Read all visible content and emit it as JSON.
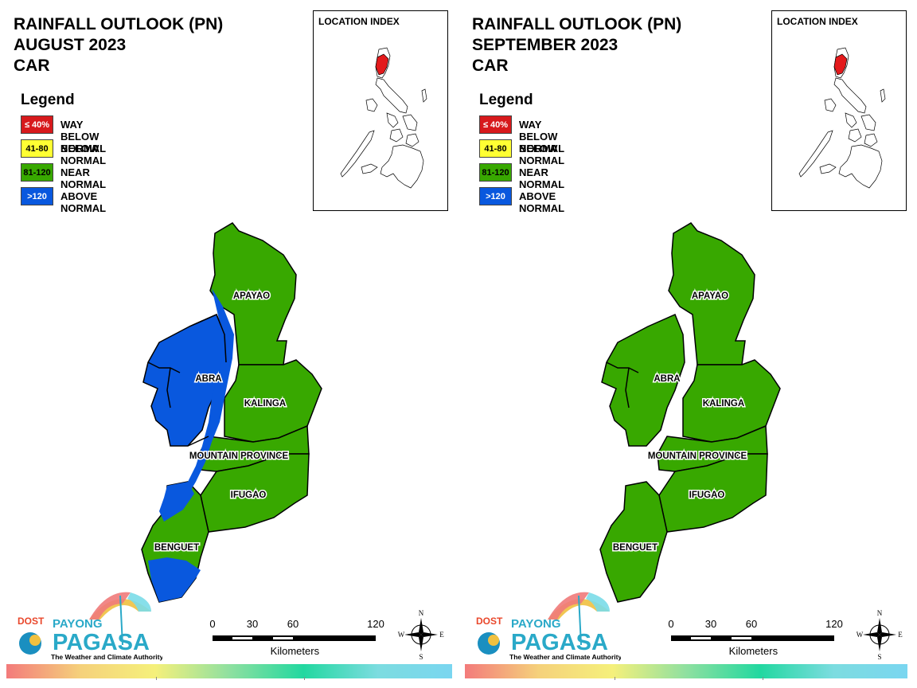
{
  "maps": [
    {
      "title_lines": [
        "RAINFALL OUTLOOK (PN)",
        "AUGUST 2023",
        "CAR"
      ],
      "provinces": {
        "apayao": {
          "label": "APAYAO",
          "category": "near"
        },
        "abra": {
          "label": "ABRA",
          "category": "above"
        },
        "kalinga": {
          "label": "KALINGA",
          "category": "near"
        },
        "mountain_province": {
          "label": "MOUNTAIN PROVINCE",
          "category": "near"
        },
        "ifugao": {
          "label": "IFUGAO",
          "category": "near"
        },
        "benguet": {
          "label": "BENGUET",
          "category": "near_and_above"
        }
      }
    },
    {
      "title_lines": [
        "RAINFALL OUTLOOK (PN)",
        "SEPTEMBER 2023",
        "CAR"
      ],
      "provinces": {
        "apayao": {
          "label": "APAYAO",
          "category": "near"
        },
        "abra": {
          "label": "ABRA",
          "category": "near"
        },
        "kalinga": {
          "label": "KALINGA",
          "category": "near"
        },
        "mountain_province": {
          "label": "MOUNTAIN PROVINCE",
          "category": "near"
        },
        "ifugao": {
          "label": "IFUGAO",
          "category": "near"
        },
        "benguet": {
          "label": "BENGUET",
          "category": "near"
        }
      }
    }
  ],
  "legend": {
    "title": "Legend",
    "items": [
      {
        "range": "≤ 40%",
        "label": "WAY BELOW NORMAL",
        "color": "#d7191c",
        "text_color": "#ffffff"
      },
      {
        "range": "41-80",
        "label": "BELOW NORMAL",
        "color": "#ffff33",
        "text_color": "#000000"
      },
      {
        "range": "81-120",
        "label": "NEAR NORMAL",
        "color": "#38a800",
        "text_color": "#000000"
      },
      {
        "range": ">120",
        "label": "ABOVE NORMAL",
        "color": "#0958de",
        "text_color": "#ffffff"
      }
    ]
  },
  "location_index": {
    "title": "LOCATION INDEX",
    "highlight_color": "#e31a1c"
  },
  "scale": {
    "ticks": [
      "0",
      "30",
      "60",
      "120"
    ],
    "unit": "Kilometers"
  },
  "compass": {
    "n": "N",
    "s": "S",
    "e": "E",
    "w": "W"
  },
  "logo": {
    "top": "DOST",
    "name1": "PAYONG",
    "name2": "PAGASA",
    "tagline": "The Weather and Climate Authority"
  },
  "colors": {
    "near": "#38a800",
    "above": "#0958de",
    "border": "#000000"
  }
}
